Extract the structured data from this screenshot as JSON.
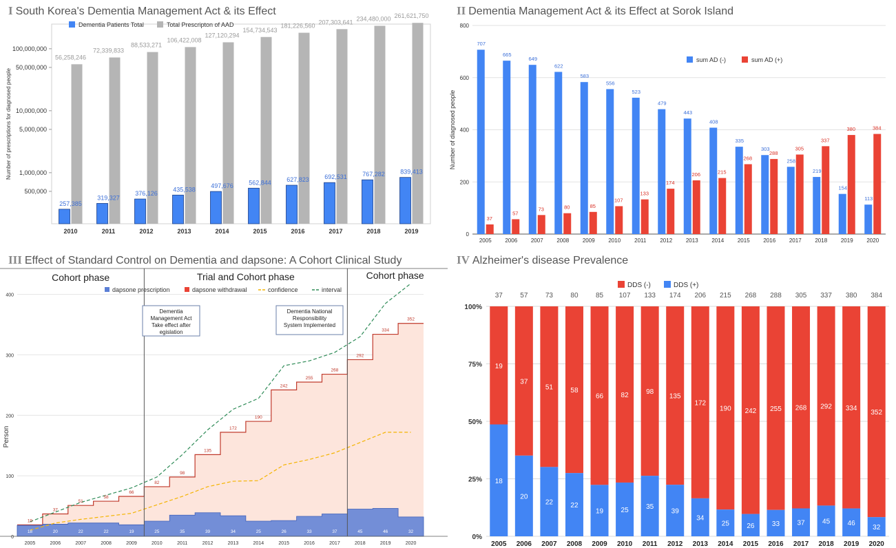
{
  "panels": [
    {
      "roman": "I",
      "title": "South Korea's Dementia Management Act & its Effect"
    },
    {
      "roman": "II",
      "title": "Dementia Management Act & its Effect at Sorok Island"
    },
    {
      "roman": "III",
      "title": "Effect of Standard Control on Dementia and dapsone: A Cohort Clinical Study"
    },
    {
      "roman": "IV",
      "title": "Alzheimer's disease Prevalence"
    }
  ],
  "colors": {
    "blue": "#4285f4",
    "red": "#ea4335",
    "gray": "#b5b5b5",
    "orange": "#f4b400",
    "green": "#2e8b57",
    "phaseFill": "#fde5dc",
    "navy": "#5b7fd6"
  },
  "chart_data": [
    {
      "type": "bar",
      "title": "South Korea's Dementia Management Act & its Effect",
      "ylabel": "Number of prescriptions for diagnosed people",
      "yscale": "log",
      "ylim": [
        150000,
        250000000
      ],
      "yticks": [
        "100,000,000",
        "50,000,000",
        "10,000,000",
        "5,000,000",
        "1,000,000",
        "500,000"
      ],
      "ytick_values": [
        100000000,
        50000000,
        10000000,
        5000000,
        1000000,
        500000
      ],
      "categories": [
        "2010",
        "2011",
        "2012",
        "2013",
        "2014",
        "2015",
        "2016",
        "2017",
        "2018",
        "2019"
      ],
      "legend_position": "top",
      "series": [
        {
          "name": "Dementia Patients Total",
          "values": [
            257385,
            319327,
            376126,
            435538,
            497676,
            562844,
            627823,
            692531,
            767282,
            839413
          ],
          "labels": [
            "257,385",
            "319,327",
            "376,126",
            "435,538",
            "497,676",
            "562,844",
            "627,823",
            "692,531",
            "767,282",
            "839,413"
          ]
        },
        {
          "name": "Total Prescripton of AAD",
          "values": [
            56258246,
            72339833,
            88533271,
            106422008,
            127120294,
            154734543,
            181226560,
            207303641,
            234480000,
            261621750
          ],
          "labels": [
            "56,258,246",
            "72,339,833",
            "88,533,271",
            "106,422,008",
            "127,120,294",
            "154,734,543",
            "181,226,560",
            "207,303,641",
            "234,480,000",
            "261,621,750"
          ]
        }
      ]
    },
    {
      "type": "bar",
      "title": "Dementia Management Act & its Effect at Sorok Island",
      "ylabel": "Number of diagnosed people",
      "ylim": [
        0,
        800
      ],
      "yticks": [
        0,
        200,
        400,
        600,
        800
      ],
      "grid": true,
      "legend_position": "top-right",
      "categories": [
        "2005",
        "2006",
        "2007",
        "2008",
        "2009",
        "2010",
        "2011",
        "2012",
        "2013",
        "2014",
        "2015",
        "2016",
        "2017",
        "2018",
        "2019",
        "2020"
      ],
      "series": [
        {
          "name": "sum AD (-)",
          "values": [
            707,
            665,
            649,
            622,
            583,
            556,
            523,
            479,
            443,
            408,
            335,
            303,
            258,
            219,
            154,
            113
          ]
        },
        {
          "name": "sum AD (+)",
          "values": [
            37,
            57,
            73,
            80,
            85,
            107,
            133,
            174,
            206,
            215,
            268,
            288,
            305,
            337,
            380,
            384
          ]
        }
      ]
    },
    {
      "type": "area",
      "title": "Effect of Standard Control on Dementia and dapsone: A Cohort Clinical Study",
      "ylabel": "Person",
      "ylim": [
        0,
        420
      ],
      "yticks": [
        0,
        100,
        200,
        300,
        400
      ],
      "grid": true,
      "legend_position": "top",
      "categories": [
        "2005",
        "2006",
        "2007",
        "2008",
        "2009",
        "2010",
        "2011",
        "2012",
        "2013",
        "2014",
        "2015",
        "2016",
        "2017",
        "2018",
        "2019",
        "2020"
      ],
      "phases": [
        "Cohort phase",
        "Trial and Cohort phase",
        "Cohort phase"
      ],
      "annotations": [
        "Dementia Management Act Take effect after legislation",
        "Dementia National Responsibility System Implemented"
      ],
      "series": [
        {
          "name": "dapsone prescription",
          "values": [
            18,
            20,
            22,
            22,
            19,
            25,
            35,
            39,
            34,
            25,
            26,
            33,
            37,
            45,
            46,
            32
          ]
        },
        {
          "name": "dapsone withdrawal",
          "values": [
            19,
            37,
            51,
            58,
            66,
            82,
            98,
            135,
            172,
            190,
            242,
            255,
            268,
            292,
            334,
            352
          ]
        },
        {
          "name": "confidence",
          "values": [
            10,
            22,
            28,
            33,
            38,
            52,
            66,
            82,
            91,
            92,
            118,
            127,
            138,
            155,
            172,
            172
          ]
        },
        {
          "name": "interval",
          "values": [
            24,
            40,
            56,
            68,
            80,
            98,
            135,
            176,
            210,
            228,
            282,
            290,
            304,
            330,
            385,
            418
          ]
        }
      ]
    },
    {
      "type": "bar",
      "stacked": "percent",
      "title": "Alzheimer's disease Prevalence",
      "yticks": [
        "0%",
        "25%",
        "50%",
        "75%",
        "100%"
      ],
      "legend_position": "top",
      "categories": [
        "2005",
        "2006",
        "2007",
        "2008",
        "2009",
        "2010",
        "2011",
        "2012",
        "2013",
        "2014",
        "2015",
        "2016",
        "2017",
        "2018",
        "2019",
        "2020"
      ],
      "totals": [
        37,
        57,
        73,
        80,
        85,
        107,
        133,
        174,
        206,
        215,
        268,
        288,
        305,
        337,
        380,
        384
      ],
      "series": [
        {
          "name": "DDS (-)",
          "values": [
            19,
            37,
            51,
            58,
            66,
            82,
            98,
            135,
            172,
            190,
            242,
            255,
            268,
            292,
            334,
            352
          ]
        },
        {
          "name": "DDS (+)",
          "values": [
            18,
            20,
            22,
            22,
            19,
            25,
            35,
            39,
            34,
            25,
            26,
            33,
            37,
            45,
            46,
            32
          ]
        }
      ]
    }
  ]
}
